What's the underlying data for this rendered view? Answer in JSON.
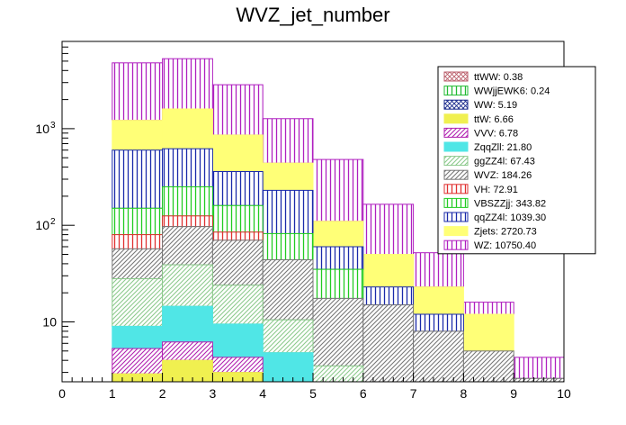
{
  "chart_data": {
    "type": "bar",
    "subtype": "stacked-histogram",
    "title": "WVZ_jet_number",
    "xlabel": "",
    "ylabel": "",
    "yscale": "log",
    "xlim": [
      0,
      10
    ],
    "ylim": [
      2.4,
      8000
    ],
    "x_ticks": [
      "0",
      "1",
      "2",
      "3",
      "4",
      "5",
      "6",
      "7",
      "8",
      "9",
      "10"
    ],
    "y_ticks": [
      {
        "value": 10,
        "label": "10"
      },
      {
        "value": 100,
        "label": "10^2"
      },
      {
        "value": 1000,
        "label": "10^3"
      }
    ],
    "bins": [
      [
        1,
        2
      ],
      [
        2,
        3
      ],
      [
        3,
        4
      ],
      [
        4,
        5
      ],
      [
        5,
        6
      ],
      [
        6,
        7
      ],
      [
        7,
        8
      ],
      [
        8,
        9
      ],
      [
        9,
        10
      ]
    ],
    "cumulative_note": "values are cumulative stack tops per bin, bottom series first",
    "series": [
      {
        "name": "ttWW",
        "legend": "ttWW: 0.38",
        "color": "#ba5e6b",
        "pattern": "cross",
        "tops": [
          0,
          0,
          0,
          0,
          0,
          0,
          0,
          0,
          0
        ]
      },
      {
        "name": "WWjjEWK6",
        "legend": "WWjjEWK6: 0.24",
        "color": "#22bb33",
        "pattern": "vertical",
        "tops": [
          0,
          0,
          0,
          0,
          0,
          0,
          0,
          0,
          0
        ]
      },
      {
        "name": "WW",
        "legend": "WW: 5.19",
        "color": "#1a2a8c",
        "pattern": "cross",
        "tops": [
          0,
          0,
          0,
          0,
          0,
          0,
          0,
          0,
          0
        ]
      },
      {
        "name": "ttW",
        "legend": "ttW: 6.66",
        "color": "#f0f050",
        "pattern": "solid",
        "tops": [
          2.9,
          4.0,
          3.0,
          0,
          0,
          0,
          0,
          0,
          0
        ]
      },
      {
        "name": "VVV",
        "legend": "VVV: 6.78",
        "color": "#b020b0",
        "pattern": "diagonal",
        "tops": [
          5.3,
          6.2,
          4.3,
          0,
          0,
          0,
          0,
          0,
          0
        ]
      },
      {
        "name": "ZqqZll",
        "legend": "ZqqZll: 21.80",
        "color": "#50e6e6",
        "pattern": "solid",
        "tops": [
          9.0,
          14.5,
          9.5,
          4.8,
          0,
          0,
          0,
          0,
          0
        ]
      },
      {
        "name": "ggZZ4l",
        "legend": "ggZZ4l: 67.43",
        "color": "#8cc98c",
        "pattern": "diagonal",
        "tops": [
          28,
          39,
          24,
          10.5,
          3.5,
          0,
          0,
          0,
          0
        ]
      },
      {
        "name": "WVZ",
        "legend": "WVZ: 184.26",
        "color": "#777777",
        "pattern": "diagonal",
        "tops": [
          57,
          97,
          70,
          44,
          17.5,
          15,
          8,
          5,
          2.6
        ]
      },
      {
        "name": "VH",
        "legend": "VH: 72.91",
        "color": "#e03030",
        "pattern": "vertical",
        "tops": [
          80,
          125,
          85,
          44,
          17.5,
          15,
          8,
          5,
          2.6
        ]
      },
      {
        "name": "VBSZZjj",
        "legend": "VBSZZjj: 343.82",
        "color": "#22cc22",
        "pattern": "vertical",
        "tops": [
          150,
          250,
          160,
          82,
          35,
          15,
          8,
          5,
          2.6
        ]
      },
      {
        "name": "qqZZ4l",
        "legend": "qqZZ4l: 1039.30",
        "color": "#1a2aaa",
        "pattern": "vertical",
        "tops": [
          600,
          620,
          360,
          230,
          60,
          23,
          12,
          5,
          2.6
        ]
      },
      {
        "name": "Zjets",
        "legend": "Zjets: 2720.73",
        "color": "#ffff77",
        "pattern": "solid",
        "tops": [
          1220,
          1600,
          860,
          440,
          110,
          50,
          23,
          12,
          2.6
        ]
      },
      {
        "name": "WZ",
        "legend": "WZ: 10750.40",
        "color": "#b020c0",
        "pattern": "vertical",
        "tops": [
          4800,
          5300,
          2850,
          1270,
          480,
          165,
          52,
          16,
          4.3
        ]
      }
    ],
    "legend_position": "top-right"
  }
}
